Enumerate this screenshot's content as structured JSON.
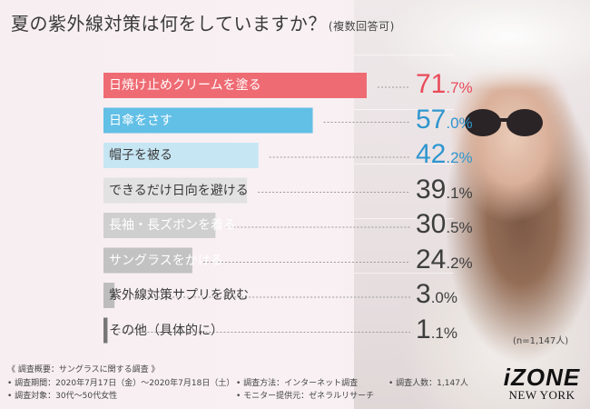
{
  "title": "夏の紫外線対策は何をしていますか？",
  "subtitle": "(複数回答可)",
  "n_note": "(n=1,147人)",
  "chart_data": {
    "type": "bar",
    "orientation": "horizontal",
    "title": "夏の紫外線対策は何をしていますか？",
    "categories": [
      "日焼け止めクリームを塗る",
      "日傘をさす",
      "帽子を被る",
      "できるだけ日向を避ける",
      "長袖・長ズボンを着る",
      "サングラスをかける",
      "紫外線対策サプリを飲む",
      "その他（具体的に）"
    ],
    "values": [
      71.7,
      57.0,
      42.2,
      39.1,
      30.5,
      24.2,
      3.0,
      1.1
    ],
    "value_labels": [
      {
        "int": "71",
        "dec": ".7%"
      },
      {
        "int": "57",
        "dec": ".0%"
      },
      {
        "int": "42",
        "dec": ".2%"
      },
      {
        "int": "39",
        "dec": ".1%"
      },
      {
        "int": "30",
        "dec": ".5%"
      },
      {
        "int": "24",
        "dec": ".2%"
      },
      {
        "int": "3",
        "dec": ".0%"
      },
      {
        "int": "1",
        "dec": ".1%"
      }
    ],
    "bar_colors": [
      "#ef6b73",
      "#62bfe6",
      "#c7e6f4",
      "#e2e2e2",
      "#cfcfcf",
      "#c2c2c2",
      "#bdbdbd",
      "#777777"
    ],
    "value_colors": [
      "#e94c5a",
      "#2f96cf",
      "#2f96cf",
      "#3d3d3d",
      "#3d3d3d",
      "#3d3d3d",
      "#3d3d3d",
      "#3d3d3d"
    ],
    "label_dark": [
      false,
      false,
      true,
      true,
      false,
      false,
      true,
      true
    ],
    "xlim": [
      0,
      100
    ]
  },
  "survey": {
    "heading": "《 調査概要：サングラスに関する調査 》",
    "period": "• 調査期間：2020年7月17日（金）〜2020年7月18日（土）",
    "target": "• 調査対象：30代〜50代女性",
    "method": "• 調査方法：インターネット調査",
    "provider": "• モニター提供元：ゼネラルリサーチ",
    "count": "• 調査人数：1,147人"
  },
  "logo": {
    "brand": "iZONE",
    "city": "NEW YORK"
  }
}
